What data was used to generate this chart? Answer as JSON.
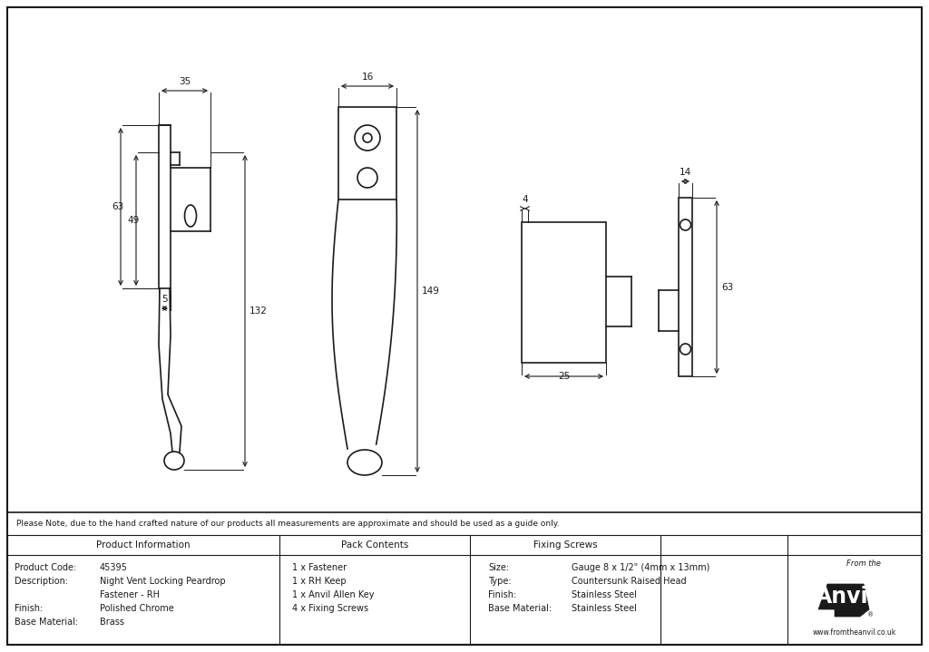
{
  "background_color": "#ffffff",
  "line_color": "#1a1a1a",
  "table_note": "Please Note, due to the hand crafted nature of our products all measurements are approximate and should be used as a guide only.",
  "row_data": [
    [
      "Product Code:",
      "45395",
      "1 x Fastener",
      "Size:",
      "Gauge 8 x 1/2\" (4mm x 13mm)"
    ],
    [
      "Description:",
      "Night Vent Locking Peardrop",
      "1 x RH Keep",
      "Type:",
      "Countersunk Raised Head"
    ],
    [
      "",
      "Fastener - RH",
      "1 x Anvil Allen Key",
      "Finish:",
      "Stainless Steel"
    ],
    [
      "Finish:",
      "Polished Chrome",
      "4 x Fixing Screws",
      "Base Material:",
      "Stainless Steel"
    ],
    [
      "Base Material:",
      "Brass",
      "",
      "",
      ""
    ]
  ]
}
